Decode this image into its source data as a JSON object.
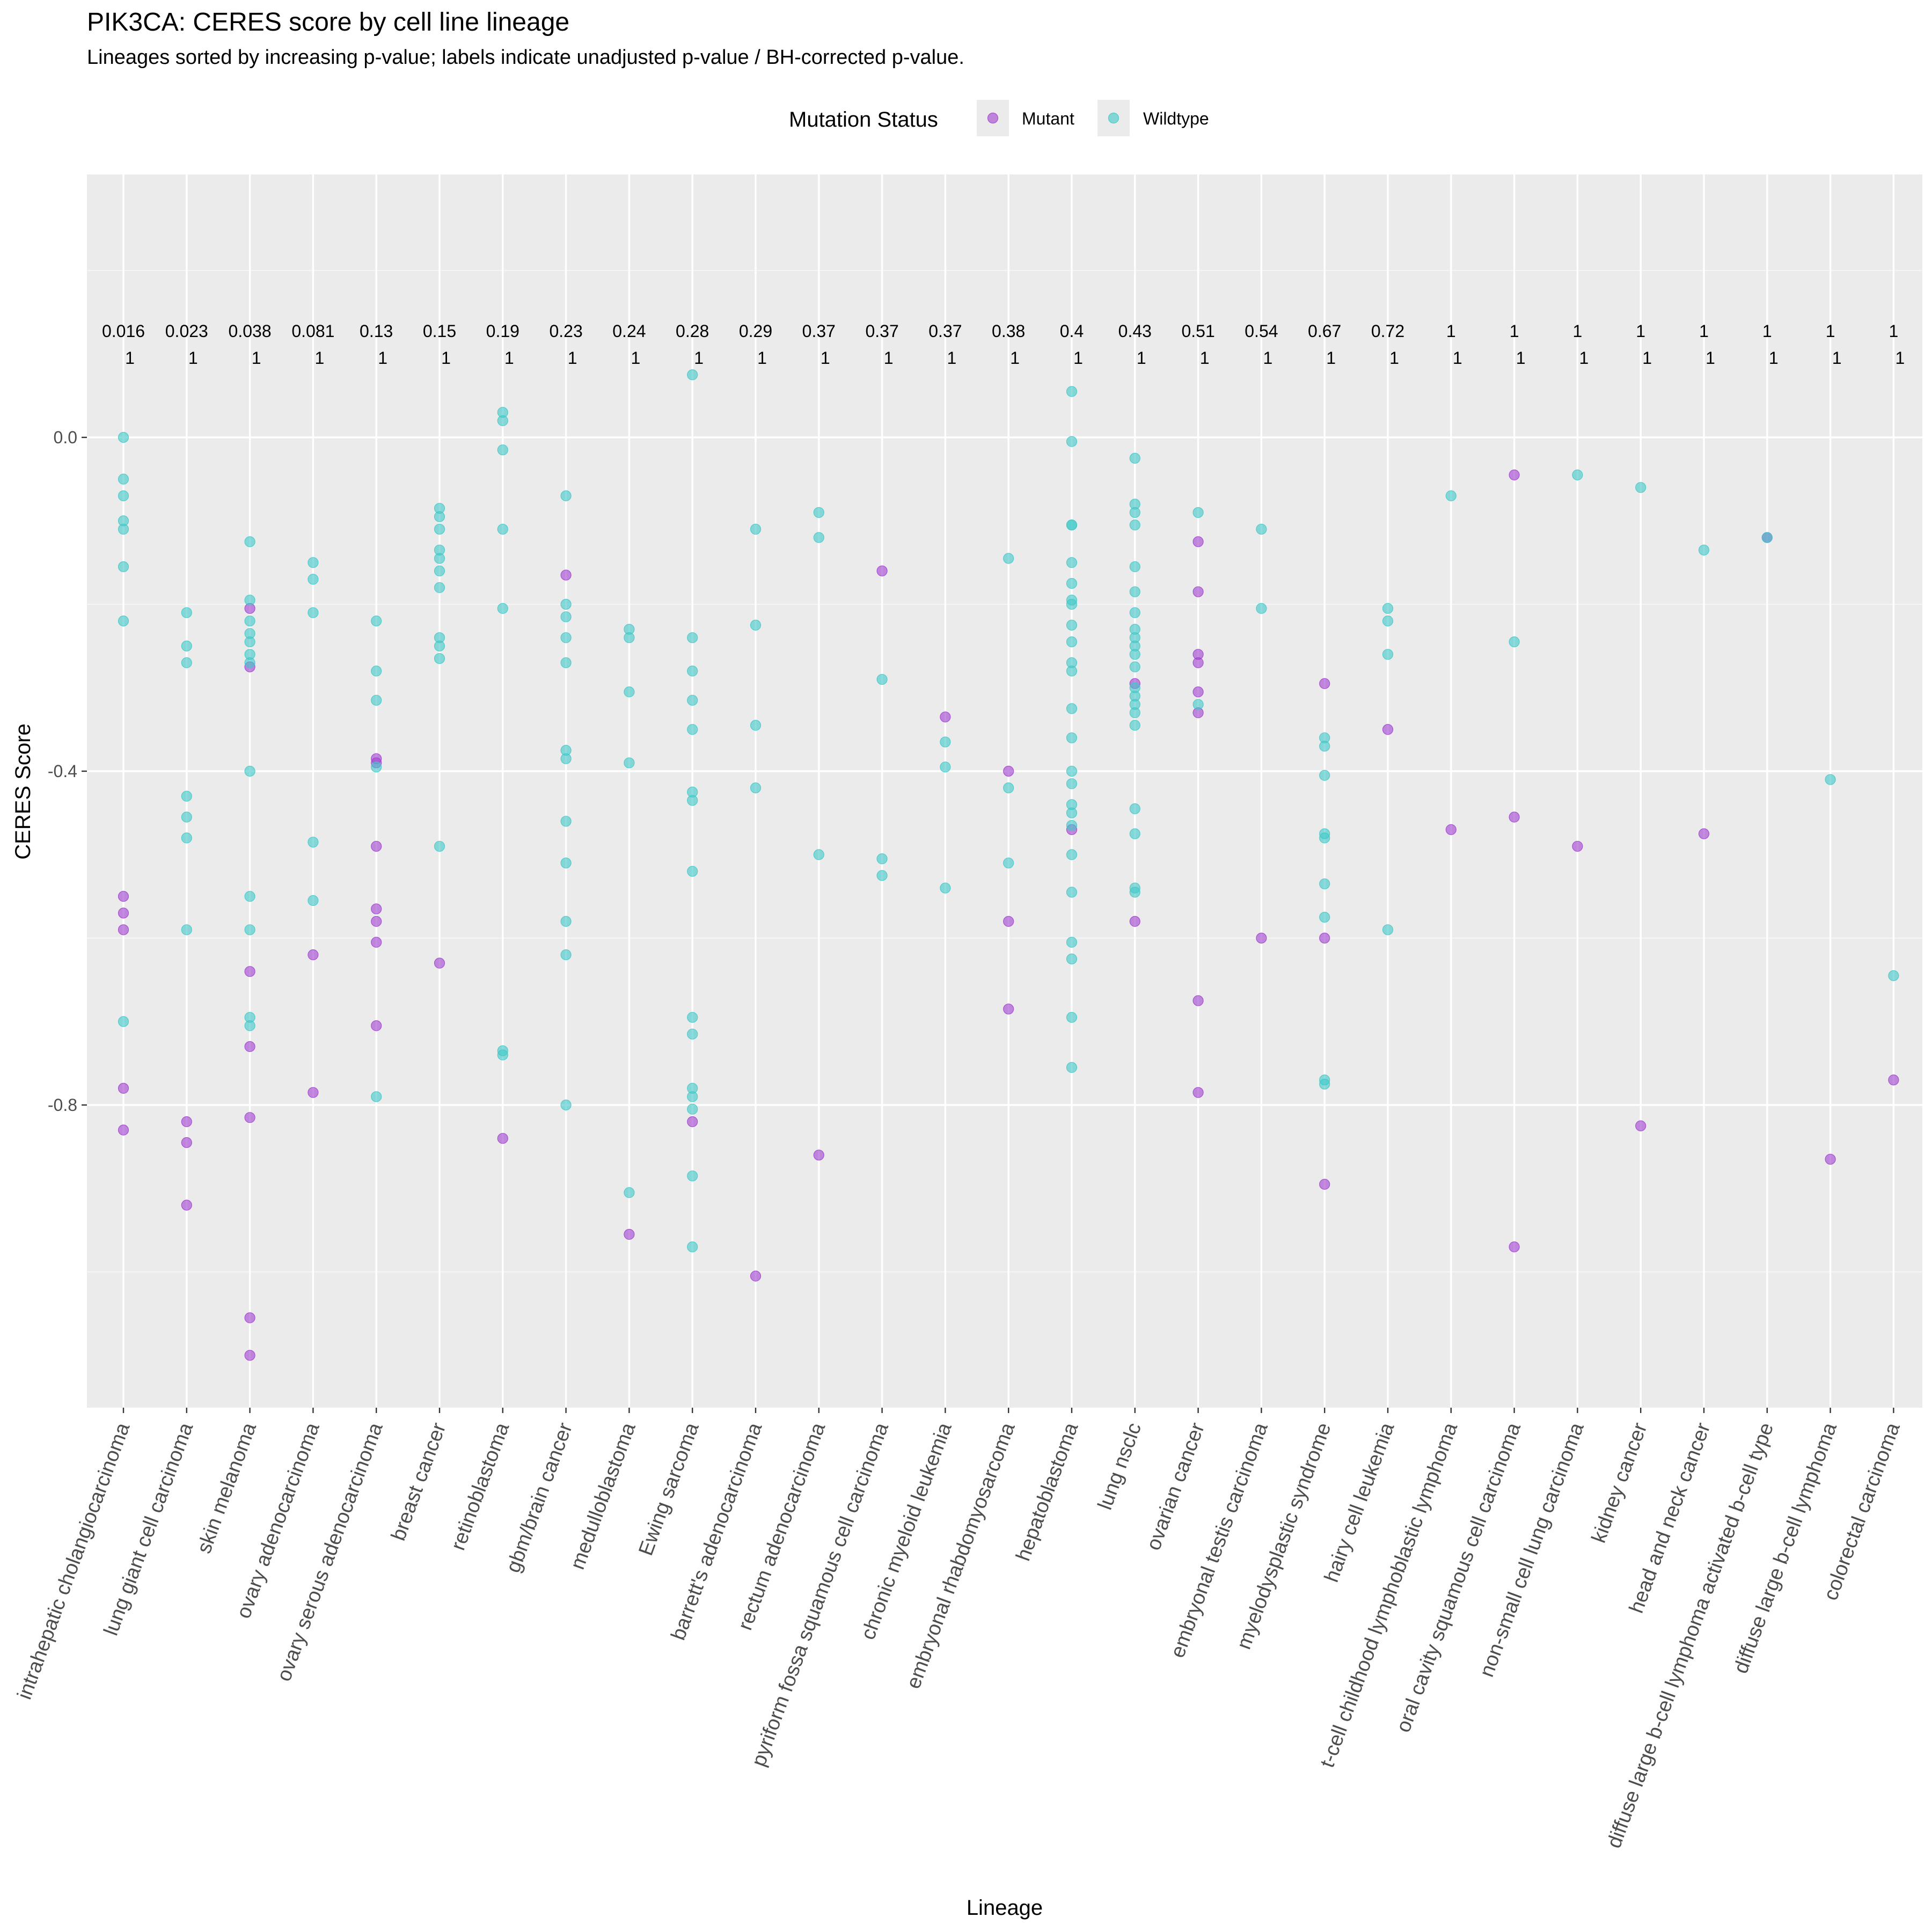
{
  "chart_data": {
    "type": "scatter",
    "title": "PIK3CA: CERES score by cell line lineage",
    "subtitle": "Lineages sorted by increasing p-value; labels indicate unadjusted p-value / BH-corrected p-value.",
    "xlabel": "Lineage",
    "ylabel": "CERES Score",
    "ylim": [
      -1.17,
      0.32
    ],
    "yticks": [
      0.0,
      -0.4,
      -0.8
    ],
    "ytick_labels": [
      "0.0",
      "-0.4",
      "-0.8"
    ],
    "grid": true,
    "legend": {
      "title": "Mutation Status",
      "placement": "top",
      "entries": [
        {
          "label": "Mutant",
          "color": "#a040d0"
        },
        {
          "label": "Wildtype",
          "color": "#40c8c8"
        }
      ]
    },
    "categories": [
      "intrahepatic cholangiocarcinoma",
      "lung giant cell carcinoma",
      "skin melanoma",
      "ovary adenocarcinoma",
      "ovary serous adenocarcinoma",
      "breast cancer",
      "retinoblastoma",
      "gbm/brain cancer",
      "medulloblastoma",
      "Ewing sarcoma",
      "barrett's adenocarcinoma",
      "rectum adenocarcinoma",
      "pyriform fossa squamous cell carcinoma",
      "chronic myeloid leukemia",
      "embryonal rhabdomyosarcoma",
      "hepatoblastoma",
      "lung nsclc",
      "ovarian cancer",
      "embryonal testis carcinoma",
      "myelodysplastic syndrome",
      "hairy cell leukemia",
      "t-cell childhood lymphoblastic lymphoma",
      "oral cavity squamous cell carcinoma",
      "non-small cell lung carcinoma",
      "kidney cancer",
      "head and neck cancer",
      "diffuse large b-cell lymphoma activated b-cell type",
      "diffuse large b-cell lymphoma",
      "colorectal carcinoma"
    ],
    "p_values": [
      "0.016",
      "0.023",
      "0.038",
      "0.081",
      "0.13",
      "0.15",
      "0.19",
      "0.23",
      "0.24",
      "0.28",
      "0.29",
      "0.37",
      "0.37",
      "0.37",
      "0.38",
      "0.4",
      "0.43",
      "0.51",
      "0.54",
      "0.67",
      "0.72",
      "1",
      "1",
      "1",
      "1",
      "1",
      "1",
      "1",
      "1"
    ],
    "bh_values": [
      "1",
      "1",
      "1",
      "1",
      "1",
      "1",
      "1",
      "1",
      "1",
      "1",
      "1",
      "1",
      "1",
      "1",
      "1",
      "1",
      "1",
      "1",
      "1",
      "1",
      "1",
      "1",
      "1",
      "1",
      "1",
      "1",
      "1",
      "1",
      "1"
    ],
    "series": [
      {
        "name": "Mutant",
        "color": "#a040d0",
        "values": [
          [
            -0.55,
            -0.57,
            -0.59,
            -0.78,
            -0.83
          ],
          [
            -0.82,
            -0.845,
            -0.92
          ],
          [
            -0.205,
            -0.275,
            -0.64,
            -0.73,
            -0.815,
            -1.055,
            -1.1
          ],
          [
            -0.62,
            -0.785
          ],
          [
            -0.385,
            -0.39,
            -0.49,
            -0.565,
            -0.58,
            -0.605,
            -0.705
          ],
          [
            -0.63
          ],
          [
            -0.84
          ],
          [
            -0.165
          ],
          [
            -0.955
          ],
          [
            -0.82
          ],
          [
            -1.005
          ],
          [
            -0.86
          ],
          [
            -0.16
          ],
          [
            -0.335
          ],
          [
            -0.4,
            -0.58,
            -0.685
          ],
          [
            -0.47
          ],
          [
            -0.295,
            -0.58
          ],
          [
            -0.125,
            -0.185,
            -0.26,
            -0.27,
            -0.305,
            -0.33,
            -0.675,
            -0.785
          ],
          [
            -0.6
          ],
          [
            -0.295,
            -0.6,
            -0.895
          ],
          [
            -0.35
          ],
          [
            -0.47
          ],
          [
            -0.045,
            -0.455,
            -0.97
          ],
          [
            -0.49
          ],
          [
            -0.825
          ],
          [
            -0.475
          ],
          [
            -0.12
          ],
          [
            -0.865
          ],
          [
            -0.77
          ]
        ]
      },
      {
        "name": "Wildtype",
        "color": "#40c8c8",
        "values": [
          [
            0.0,
            -0.05,
            -0.07,
            -0.1,
            -0.11,
            -0.155,
            -0.22,
            -0.7
          ],
          [
            -0.21,
            -0.25,
            -0.27,
            -0.43,
            -0.455,
            -0.48,
            -0.59
          ],
          [
            -0.125,
            -0.195,
            -0.22,
            -0.235,
            -0.245,
            -0.26,
            -0.27,
            -0.4,
            -0.55,
            -0.59,
            -0.695,
            -0.705
          ],
          [
            -0.15,
            -0.17,
            -0.21,
            -0.485,
            -0.555
          ],
          [
            -0.22,
            -0.28,
            -0.315,
            -0.395,
            -0.79
          ],
          [
            -0.085,
            -0.095,
            -0.11,
            -0.135,
            -0.145,
            -0.16,
            -0.18,
            -0.24,
            -0.25,
            -0.265,
            -0.49
          ],
          [
            0.03,
            0.02,
            -0.015,
            -0.11,
            -0.205,
            -0.735,
            -0.74
          ],
          [
            -0.07,
            -0.2,
            -0.215,
            -0.24,
            -0.27,
            -0.375,
            -0.385,
            -0.46,
            -0.51,
            -0.58,
            -0.62,
            -0.8
          ],
          [
            -0.23,
            -0.24,
            -0.305,
            -0.39,
            -0.905
          ],
          [
            0.075,
            -0.24,
            -0.28,
            -0.315,
            -0.35,
            -0.425,
            -0.435,
            -0.52,
            -0.695,
            -0.715,
            -0.78,
            -0.79,
            -0.805,
            -0.885,
            -0.97
          ],
          [
            -0.11,
            -0.225,
            -0.345,
            -0.42
          ],
          [
            -0.09,
            -0.12,
            -0.5
          ],
          [
            -0.29,
            -0.505,
            -0.525
          ],
          [
            -0.365,
            -0.395,
            -0.54
          ],
          [
            -0.145,
            -0.42,
            -0.51
          ],
          [
            0.055,
            -0.005,
            -0.105,
            -0.105,
            -0.15,
            -0.175,
            -0.195,
            -0.2,
            -0.225,
            -0.245,
            -0.27,
            -0.28,
            -0.325,
            -0.36,
            -0.4,
            -0.415,
            -0.44,
            -0.45,
            -0.465,
            -0.5,
            -0.545,
            -0.605,
            -0.625,
            -0.695,
            -0.755
          ],
          [
            -0.025,
            -0.08,
            -0.09,
            -0.105,
            -0.155,
            -0.185,
            -0.21,
            -0.23,
            -0.24,
            -0.25,
            -0.26,
            -0.275,
            -0.3,
            -0.31,
            -0.32,
            -0.33,
            -0.345,
            -0.445,
            -0.475,
            -0.54,
            -0.545
          ],
          [
            -0.09,
            -0.32
          ],
          [
            -0.11,
            -0.205
          ],
          [
            -0.36,
            -0.37,
            -0.405,
            -0.475,
            -0.48,
            -0.535,
            -0.575,
            -0.77,
            -0.775
          ],
          [
            -0.205,
            -0.22,
            -0.26,
            -0.59
          ],
          [
            -0.07
          ],
          [
            -0.245
          ],
          [
            -0.045
          ],
          [
            -0.06
          ],
          [
            -0.135
          ],
          [
            -0.12
          ],
          [
            -0.41
          ],
          [
            -0.645
          ]
        ]
      }
    ]
  }
}
